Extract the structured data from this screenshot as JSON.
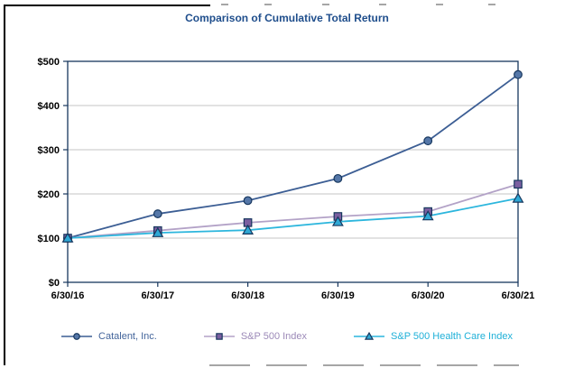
{
  "chart_data": {
    "type": "line",
    "title": "Comparison of Cumulative Total Return",
    "title_color": "#1F4E8C",
    "categories": [
      "6/30/16",
      "6/30/17",
      "6/30/18",
      "6/30/19",
      "6/30/20",
      "6/30/21"
    ],
    "series": [
      {
        "name": "Catalent, Inc.",
        "marker": "circle",
        "values": [
          100,
          155,
          185,
          235,
          320,
          470
        ],
        "line_color": "#3C5E94",
        "marker_fill": "#5577A8",
        "label_color": "#44659B"
      },
      {
        "name": "S&P 500 Index",
        "marker": "square",
        "values": [
          100,
          117,
          135,
          149,
          160,
          222
        ],
        "line_color": "#B3A2C7",
        "marker_fill": "#7B5FA0",
        "label_color": "#9C8AB8"
      },
      {
        "name": "S&P 500 Health Care Index",
        "marker": "triangle",
        "values": [
          100,
          112,
          118,
          137,
          150,
          190
        ],
        "line_color": "#2CB6DD",
        "marker_fill": "#2FA8D5",
        "label_color": "#1FB0D8"
      }
    ],
    "ylim": [
      0,
      500
    ],
    "y_ticks": [
      "$0",
      "$100",
      "$200",
      "$300",
      "$400",
      "$500"
    ],
    "grid": true,
    "grid_color": "#C6C6C6",
    "axis_color": "#17375E",
    "marker_stroke": "#17375E",
    "tick_label_color": "#000000",
    "legend_position": "bottom"
  }
}
